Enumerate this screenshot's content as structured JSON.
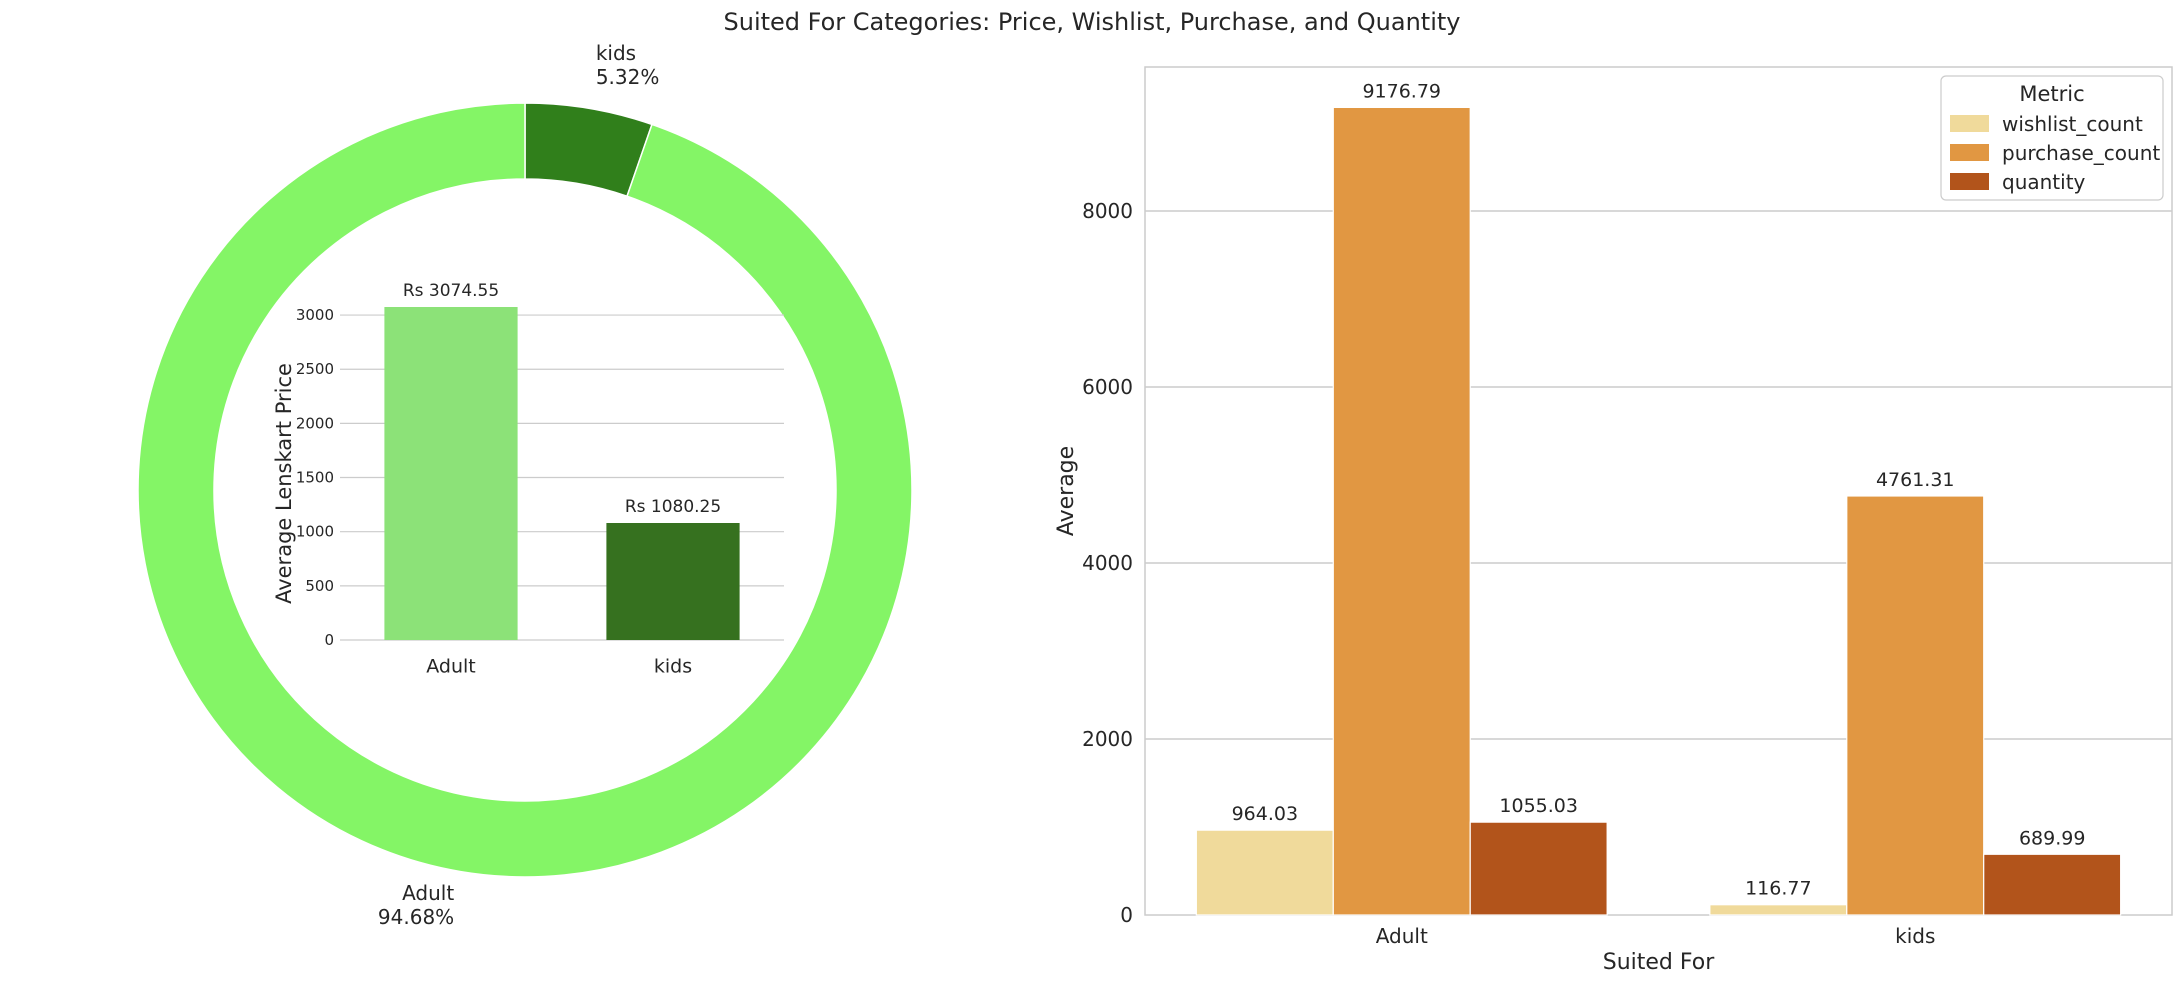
{
  "title": "Suited For Categories: Price, Wishlist, Purchase, and Quantity",
  "chart_data": [
    {
      "type": "pie",
      "variant": "donut",
      "categories": [
        "Adult",
        "kids"
      ],
      "values": [
        94.68,
        5.32
      ],
      "slice_labels": [
        "Adult\n94.68%",
        "kids\n5.32%"
      ],
      "colors": [
        "#84f566",
        "#307f1b"
      ],
      "start_angle_deg": 90,
      "direction": "clockwise-from-top-kids-first"
    },
    {
      "type": "bar",
      "inset_in": "donut-center",
      "categories": [
        "Adult",
        "kids"
      ],
      "values": [
        3074.55,
        1080.25
      ],
      "data_labels": [
        "Rs 3074.55",
        "Rs 1080.25"
      ],
      "colors": [
        "#8ce278",
        "#36711f"
      ],
      "xlabel": "",
      "ylabel": "Average Lenskart Price",
      "ylim": [
        0,
        3074.55
      ],
      "yticks": [
        0,
        500,
        1000,
        1500,
        2000,
        2500,
        3000
      ],
      "grid": true
    },
    {
      "type": "bar",
      "categories": [
        "Adult",
        "kids"
      ],
      "series": [
        {
          "name": "wishlist_count",
          "values": [
            964.03,
            116.77
          ],
          "labels": [
            "964.03",
            "116.77"
          ],
          "color": "#f0da9b"
        },
        {
          "name": "purchase_count",
          "values": [
            9176.79,
            4761.31
          ],
          "labels": [
            "9176.79",
            "4761.31"
          ],
          "color": "#e19742"
        },
        {
          "name": "quantity",
          "values": [
            1055.03,
            689.99
          ],
          "labels": [
            "1055.03",
            "689.99"
          ],
          "color": "#b2541b"
        }
      ],
      "xlabel": "Suited For",
      "ylabel": "Average",
      "ylim": [
        0,
        9636
      ],
      "yticks": [
        0,
        2000,
        4000,
        6000,
        8000
      ],
      "grid": true,
      "legend": {
        "title": "Metric",
        "placement": "top-right"
      }
    }
  ]
}
